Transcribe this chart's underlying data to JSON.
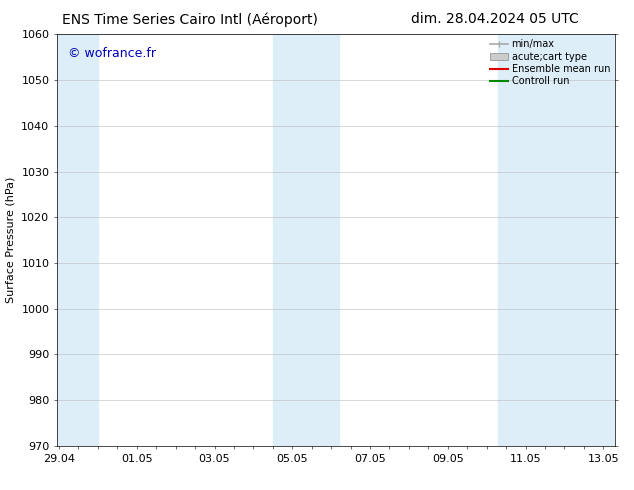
{
  "title_left": "ENS Time Series Cairo Intl (Aéroport)",
  "title_right": "dim. 28.04.2024 05 UTC",
  "ylabel": "Surface Pressure (hPa)",
  "ylim": [
    970,
    1060
  ],
  "yticks": [
    970,
    980,
    990,
    1000,
    1010,
    1020,
    1030,
    1040,
    1050,
    1060
  ],
  "x_labels": [
    "29.04",
    "01.05",
    "03.05",
    "05.05",
    "07.05",
    "09.05",
    "11.05",
    "13.05"
  ],
  "x_positions": [
    0,
    2,
    4,
    6,
    8,
    10,
    12,
    14
  ],
  "xlim": [
    -0.05,
    14.3
  ],
  "shaded_bands": [
    {
      "x_start": -0.05,
      "x_end": 1.0,
      "color": "#ddeef8"
    },
    {
      "x_start": 5.5,
      "x_end": 7.2,
      "color": "#ddeef8"
    },
    {
      "x_start": 11.3,
      "x_end": 14.3,
      "color": "#ddeef8"
    }
  ],
  "watermark": "© wofrance.fr",
  "watermark_color": "#0000bb",
  "background_color": "#ffffff",
  "plot_bg_color": "#ffffff",
  "grid_color": "#bbbbbb",
  "legend_items": [
    {
      "label": "min/max",
      "color": "#aaaaaa",
      "style": "line_with_caps"
    },
    {
      "label": "acute;cart type",
      "color": "#cccccc",
      "style": "filled_bar"
    },
    {
      "label": "Ensemble mean run",
      "color": "#dd0000",
      "style": "line"
    },
    {
      "label": "Controll run",
      "color": "#008800",
      "style": "line"
    }
  ],
  "title_fontsize": 10,
  "tick_fontsize": 8,
  "label_fontsize": 8,
  "watermark_fontsize": 9,
  "legend_fontsize": 7
}
